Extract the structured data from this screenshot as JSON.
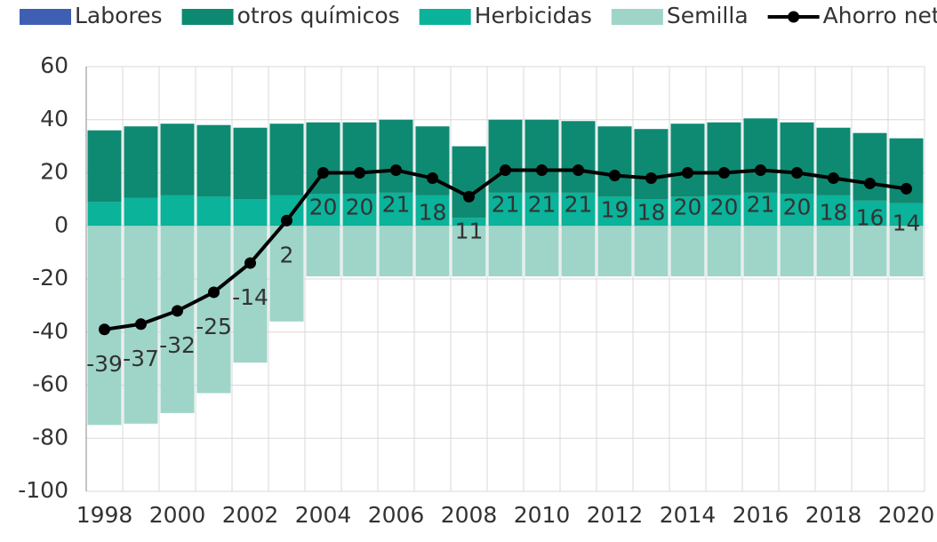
{
  "chart_data": {
    "type": "bar",
    "stacked": true,
    "categories": [
      1998,
      null,
      2000,
      null,
      2002,
      null,
      2004,
      null,
      2006,
      null,
      2008,
      null,
      2010,
      null,
      2012,
      null,
      2014,
      null,
      2016,
      null,
      2018,
      null,
      2020
    ],
    "series": [
      {
        "name": "Labores",
        "color": "#3f5fb5",
        "values": [
          0,
          0,
          0,
          0,
          0,
          0,
          0,
          0,
          0,
          0,
          0,
          0,
          0,
          0,
          0,
          0,
          0,
          0,
          0,
          0,
          0,
          0,
          0
        ]
      },
      {
        "name": "otros químicos",
        "color": "#0e8a72",
        "values": [
          27,
          27,
          27,
          27,
          27,
          27,
          27,
          27,
          27.5,
          26,
          27,
          27.5,
          27.5,
          27,
          26.5,
          26.5,
          27.5,
          27.5,
          28,
          27,
          25.5,
          25.5,
          24.5
        ]
      },
      {
        "name": "Herbicidas",
        "color": "#0ab39a",
        "values": [
          9,
          10.5,
          11.5,
          11,
          10,
          11.5,
          12,
          12,
          12.5,
          11.5,
          3,
          12.5,
          12.5,
          12.5,
          11,
          10,
          11,
          11.5,
          12.5,
          12,
          11.5,
          9.5,
          8.5
        ]
      },
      {
        "name": "Semilla",
        "color": "#9ed5c8",
        "values": [
          -75,
          -74.5,
          -70.5,
          -63,
          -51.5,
          -36,
          -19,
          -19,
          -19,
          -19,
          -19,
          -19,
          -19,
          -19,
          -19,
          -19,
          -19,
          -19,
          -19,
          -19,
          -19,
          -19,
          -19
        ]
      },
      {
        "name": "Ahorro neto",
        "color": "#000000",
        "type": "line",
        "values": [
          -39,
          -37,
          -32,
          -25,
          -14,
          2,
          20,
          20,
          21,
          18,
          11,
          21,
          21,
          21,
          19,
          18,
          20,
          20,
          21,
          20,
          18,
          16,
          14
        ]
      }
    ],
    "ylim": [
      -100,
      60
    ],
    "yticks": [
      -100,
      -80,
      -60,
      -40,
      -20,
      0,
      20,
      40,
      60
    ],
    "grid": true,
    "legend": "top"
  }
}
